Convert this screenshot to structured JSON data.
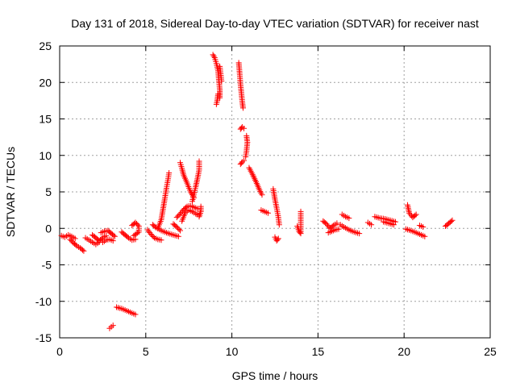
{
  "chart_data": {
    "type": "scatter",
    "title": "Day 131 of 2018, Sidereal Day-to-day VTEC variation (SDTVAR) for receiver nast",
    "xlabel": "GPS time / hours",
    "ylabel": "SDTVAR / TECUs",
    "xlim": [
      0,
      25
    ],
    "ylim": [
      -15,
      25
    ],
    "xticks": [
      0,
      5,
      10,
      15,
      20,
      25
    ],
    "yticks": [
      -15,
      -10,
      -5,
      0,
      5,
      10,
      15,
      20,
      25
    ],
    "grid": true,
    "marker": "+",
    "color": "#ff0000",
    "series": [
      {
        "name": "SDTVAR",
        "segments": [
          [
            [
              0.1,
              -1.0
            ],
            [
              0.3,
              -1.2
            ],
            [
              0.5,
              -0.9
            ],
            [
              0.7,
              -1.1
            ],
            [
              0.9,
              -1.4
            ]
          ],
          [
            [
              0.6,
              -1.5
            ],
            [
              0.8,
              -2.0
            ],
            [
              1.0,
              -2.4
            ],
            [
              1.2,
              -2.7
            ],
            [
              1.4,
              -3.1
            ]
          ],
          [
            [
              1.5,
              -1.3
            ],
            [
              1.7,
              -1.6
            ],
            [
              1.9,
              -1.9
            ],
            [
              2.1,
              -2.2
            ],
            [
              2.3,
              -1.9
            ]
          ],
          [
            [
              1.9,
              -0.9
            ],
            [
              2.1,
              -1.3
            ],
            [
              2.3,
              -1.7
            ],
            [
              2.5,
              -1.3
            ],
            [
              2.7,
              -1.0
            ]
          ],
          [
            [
              2.4,
              -0.6
            ],
            [
              2.6,
              -0.4
            ],
            [
              2.8,
              -0.3
            ],
            [
              3.0,
              -0.7
            ],
            [
              3.2,
              -1.1
            ]
          ],
          [
            [
              2.5,
              -1.9
            ],
            [
              2.7,
              -1.6
            ],
            [
              2.9,
              -1.5
            ],
            [
              3.1,
              -1.7
            ]
          ],
          [
            [
              3.6,
              -0.5
            ],
            [
              3.8,
              -0.9
            ],
            [
              4.0,
              -1.3
            ],
            [
              4.2,
              -1.6
            ],
            [
              4.4,
              -1.5
            ]
          ],
          [
            [
              4.2,
              0.4
            ],
            [
              4.4,
              0.8
            ],
            [
              4.6,
              0.3
            ],
            [
              4.6,
              -0.5
            ],
            [
              4.3,
              -1.0
            ]
          ],
          [
            [
              5.1,
              -0.2
            ],
            [
              5.3,
              -0.8
            ],
            [
              5.5,
              -1.3
            ],
            [
              5.7,
              -1.5
            ],
            [
              5.9,
              -1.6
            ]
          ],
          [
            [
              5.4,
              0.5
            ],
            [
              5.6,
              0.1
            ],
            [
              5.9,
              -0.3
            ],
            [
              6.2,
              -0.6
            ],
            [
              6.6,
              -0.9
            ],
            [
              6.9,
              -1.1
            ]
          ],
          [
            [
              5.7,
              0.0
            ],
            [
              5.9,
              1.2
            ],
            [
              6.0,
              2.6
            ],
            [
              6.1,
              4.0
            ],
            [
              6.2,
              5.5
            ],
            [
              6.3,
              6.8
            ],
            [
              6.35,
              7.6
            ]
          ],
          [
            [
              6.6,
              0.6
            ],
            [
              6.8,
              0.2
            ],
            [
              7.0,
              -0.3
            ]
          ],
          [
            [
              6.8,
              1.5
            ],
            [
              7.0,
              2.0
            ],
            [
              7.2,
              2.6
            ],
            [
              7.4,
              3.0
            ],
            [
              7.6,
              3.1
            ],
            [
              7.8,
              2.9
            ],
            [
              8.0,
              2.7
            ]
          ],
          [
            [
              7.1,
              1.0
            ],
            [
              7.3,
              2.2
            ],
            [
              7.5,
              2.5
            ],
            [
              7.7,
              2.3
            ],
            [
              7.9,
              2.0
            ],
            [
              8.1,
              1.8
            ]
          ],
          [
            [
              7.0,
              9.0
            ],
            [
              7.1,
              8.2
            ],
            [
              7.2,
              7.3
            ],
            [
              7.4,
              6.2
            ],
            [
              7.6,
              5.0
            ],
            [
              7.8,
              4.2
            ]
          ],
          [
            [
              8.1,
              9.2
            ],
            [
              8.1,
              8.0
            ],
            [
              8.0,
              6.8
            ],
            [
              7.9,
              5.7
            ],
            [
              7.8,
              4.7
            ],
            [
              7.7,
              3.7
            ]
          ],
          [
            [
              8.2,
              3.0
            ],
            [
              8.2,
              2.3
            ],
            [
              8.1,
              1.6
            ]
          ],
          [
            [
              8.9,
              23.8
            ],
            [
              9.0,
              23.4
            ],
            [
              9.1,
              22.6
            ],
            [
              9.2,
              21.6
            ],
            [
              9.25,
              20.2
            ],
            [
              9.3,
              19.0
            ],
            [
              9.3,
              17.9
            ]
          ],
          [
            [
              9.2,
              18.4
            ],
            [
              9.15,
              17.5
            ],
            [
              9.1,
              17.0
            ]
          ],
          [
            [
              9.3,
              22.2
            ],
            [
              9.35,
              21.2
            ],
            [
              9.4,
              20.2
            ]
          ],
          [
            [
              10.4,
              22.7
            ],
            [
              10.45,
              21.3
            ],
            [
              10.5,
              19.8
            ],
            [
              10.55,
              18.6
            ],
            [
              10.6,
              17.4
            ],
            [
              10.65,
              16.5
            ]
          ],
          [
            [
              10.5,
              13.6
            ],
            [
              10.6,
              13.9
            ],
            [
              10.7,
              13.7
            ]
          ],
          [
            [
              10.85,
              12.7
            ],
            [
              10.9,
              11.8
            ],
            [
              10.85,
              10.6
            ],
            [
              10.8,
              9.8
            ]
          ],
          [
            [
              10.5,
              8.8
            ],
            [
              10.6,
              9.1
            ],
            [
              10.7,
              9.3
            ]
          ],
          [
            [
              11.0,
              8.3
            ],
            [
              11.2,
              7.4
            ],
            [
              11.4,
              6.4
            ],
            [
              11.6,
              5.3
            ],
            [
              11.75,
              4.6
            ]
          ],
          [
            [
              11.7,
              2.5
            ],
            [
              11.9,
              2.3
            ],
            [
              12.1,
              2.1
            ]
          ],
          [
            [
              12.4,
              5.4
            ],
            [
              12.5,
              4.0
            ],
            [
              12.6,
              2.8
            ],
            [
              12.7,
              1.5
            ],
            [
              12.75,
              0.5
            ]
          ],
          [
            [
              12.5,
              -1.2
            ],
            [
              12.6,
              -1.7
            ],
            [
              12.7,
              -1.4
            ]
          ],
          [
            [
              13.8,
              0.3
            ],
            [
              13.9,
              -0.4
            ],
            [
              14.0,
              -0.7
            ],
            [
              14.0,
              2.3
            ]
          ],
          [
            [
              15.3,
              1.0
            ],
            [
              15.5,
              0.6
            ],
            [
              15.7,
              0.0
            ],
            [
              15.9,
              0.4
            ],
            [
              16.1,
              0.7
            ]
          ],
          [
            [
              15.6,
              -0.6
            ],
            [
              15.8,
              -0.4
            ],
            [
              16.0,
              -0.2
            ],
            [
              16.2,
              -0.1
            ]
          ],
          [
            [
              16.3,
              0.5
            ],
            [
              16.5,
              0.2
            ],
            [
              16.8,
              -0.2
            ],
            [
              17.1,
              -0.5
            ],
            [
              17.4,
              -0.7
            ]
          ],
          [
            [
              16.4,
              1.9
            ],
            [
              16.6,
              1.6
            ],
            [
              16.8,
              1.4
            ]
          ],
          [
            [
              17.9,
              0.8
            ],
            [
              18.1,
              0.5
            ]
          ],
          [
            [
              18.3,
              1.6
            ],
            [
              18.6,
              1.4
            ],
            [
              18.9,
              1.3
            ],
            [
              19.2,
              1.1
            ],
            [
              19.5,
              0.9
            ]
          ],
          [
            [
              18.8,
              0.9
            ],
            [
              19.1,
              0.7
            ],
            [
              19.4,
              0.5
            ]
          ],
          [
            [
              20.2,
              3.2
            ],
            [
              20.3,
              2.1
            ],
            [
              20.5,
              1.5
            ],
            [
              20.7,
              1.9
            ]
          ],
          [
            [
              20.1,
              -0.1
            ],
            [
              20.4,
              -0.3
            ],
            [
              20.7,
              -0.6
            ],
            [
              21.0,
              -0.9
            ],
            [
              21.2,
              -1.1
            ]
          ],
          [
            [
              20.9,
              0.4
            ],
            [
              21.1,
              0.2
            ]
          ],
          [
            [
              22.4,
              0.3
            ],
            [
              22.6,
              0.7
            ],
            [
              22.8,
              1.1
            ]
          ],
          [
            [
              2.9,
              -13.7
            ],
            [
              3.0,
              -13.5
            ],
            [
              3.1,
              -13.3
            ]
          ],
          [
            [
              3.3,
              -10.8
            ],
            [
              3.6,
              -11.0
            ],
            [
              3.9,
              -11.3
            ],
            [
              4.2,
              -11.6
            ],
            [
              4.4,
              -11.8
            ]
          ]
        ]
      }
    ]
  }
}
